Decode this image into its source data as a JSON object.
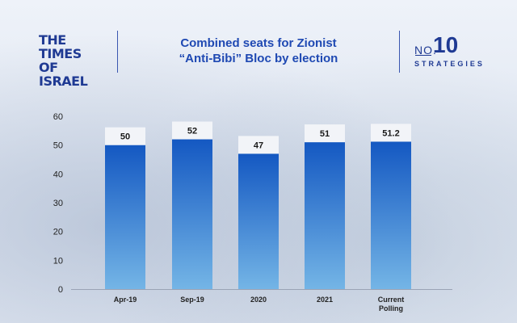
{
  "brand": {
    "left_logo_line1": "THE TIMES",
    "left_logo_line2": "OF ISRAEL",
    "right_logo_no": "NO.",
    "right_logo_number": "10",
    "right_logo_word": "STRATEGIES"
  },
  "colors": {
    "brand_blue": "#1f3a93",
    "title_blue": "#1f49b3",
    "bar_top": "#1458c2",
    "bar_bottom": "#74b5e6",
    "label_box": "#f2f4f8"
  },
  "chart_data": {
    "type": "bar",
    "title_line1": "Combined seats for Zionist",
    "title_line2": "“Anti-Bibi” Bloc by election",
    "categories": [
      "Apr-19",
      "Sep-19",
      "2020",
      "2021",
      "Current\nPolling"
    ],
    "values": [
      50,
      52,
      47,
      51,
      51.2
    ],
    "data_labels": [
      "50",
      "52",
      "47",
      "51",
      "51.2"
    ],
    "ylim": [
      0,
      60
    ],
    "yticks": [
      0,
      10,
      20,
      30,
      40,
      50,
      60
    ],
    "xlabel": "",
    "ylabel": "",
    "grid": false,
    "legend": "none"
  }
}
